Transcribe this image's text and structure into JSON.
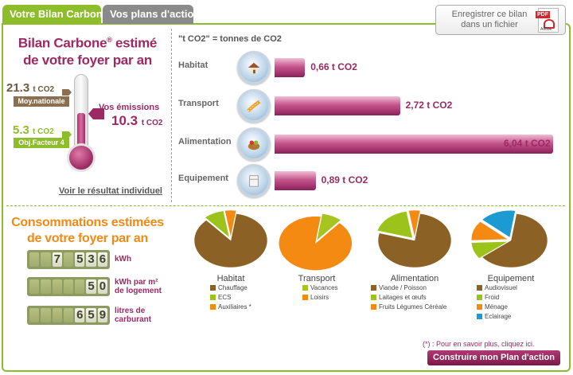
{
  "tabs": [
    {
      "label": "Votre Bilan Carbone",
      "active": true
    },
    {
      "label": "Vos plans d'action",
      "active": false
    }
  ],
  "save_pdf": {
    "line1": "Enregistrer ce bilan",
    "line2": "dans un fichier",
    "pdf_badge": "PDF",
    "adobe_label": "Adobe"
  },
  "bilan": {
    "title_line1": "Bilan Carbone",
    "reg_mark": "®",
    "title_line1_end": " estimé",
    "title_line2": "de votre foyer par an",
    "moy_value": "21.3",
    "moy_unit": "t CO2",
    "moy_label": "Moy.nationale",
    "obj_value": "5.3",
    "obj_unit": "t CO2",
    "obj_label": "Obj.Facteur 4",
    "emissions_label": "Vos émissions",
    "emissions_value": "10.3",
    "emissions_unit": "t CO2",
    "individual_link": "Voir le résultat individuel"
  },
  "consommations": {
    "title_line1": "Consommations estimées",
    "title_line2": "de votre foyer par an",
    "counters": [
      {
        "digits": [
          "",
          "",
          "7",
          "",
          "5",
          "3",
          "6"
        ],
        "unit_line1": "kWh",
        "unit_line2": ""
      },
      {
        "digits": [
          "",
          "",
          "",
          "",
          "",
          "5",
          "0"
        ],
        "unit_line1": "kWh par m²",
        "unit_line2": "de logement"
      },
      {
        "digits": [
          "",
          "",
          "",
          "",
          "6",
          "5",
          "9"
        ],
        "unit_line1": "litres de",
        "unit_line2": "carburant"
      }
    ]
  },
  "emissions_note": "\"t CO2\" = tonnes de CO2",
  "chart_data": {
    "type": "bar",
    "categories": [
      "Habitat",
      "Transport",
      "Alimentation",
      "Equipement"
    ],
    "values": [
      0.66,
      2.72,
      6.04,
      0.89
    ],
    "value_labels": [
      "0,66 t CO2",
      "2,72 t CO2",
      "6,04 t CO2",
      "0,89 t CO2"
    ],
    "unit": "t CO2",
    "xlim": [
      0,
      6.04
    ]
  },
  "icons": [
    "house-icon",
    "road-icon",
    "food-basket-icon",
    "appliance-icon"
  ],
  "pies": [
    {
      "title": "Habitat",
      "slices": [
        {
          "label": "Chauffage",
          "value": 86,
          "color": "#8b6125"
        },
        {
          "label": "ECS",
          "value": 9,
          "color": "#9cc31c"
        },
        {
          "label": "Auxiliaires *",
          "value": 5,
          "color": "#f48a12"
        }
      ]
    },
    {
      "title": "Transport",
      "slices": [
        {
          "label": "Vacances",
          "value": 9,
          "color": "#a8c41e"
        },
        {
          "label": "Loisirs",
          "value": 91,
          "color": "#f48a12"
        }
      ]
    },
    {
      "title": "Alimentation",
      "slices": [
        {
          "label": "Viande / Poisson",
          "value": 77,
          "color": "#8b6125"
        },
        {
          "label": "Laitages et œufs",
          "value": 18,
          "color": "#9cc31c"
        },
        {
          "label": "Fruits Légumes Céréale",
          "value": 5,
          "color": "#f48a12"
        }
      ]
    },
    {
      "title": "Equipement",
      "slices": [
        {
          "label": "Audiovisuel",
          "value": 62,
          "color": "#8b6125"
        },
        {
          "label": "Froid",
          "value": 10,
          "color": "#9cc31c"
        },
        {
          "label": "Ménage",
          "value": 12,
          "color": "#f48a12"
        },
        {
          "label": "Eclairage",
          "value": 16,
          "color": "#1b9bd1"
        }
      ]
    }
  ],
  "footnote": "(*) : Pour en savoir plus, cliquez ici.",
  "action_button": "Construire mon Plan d'action"
}
